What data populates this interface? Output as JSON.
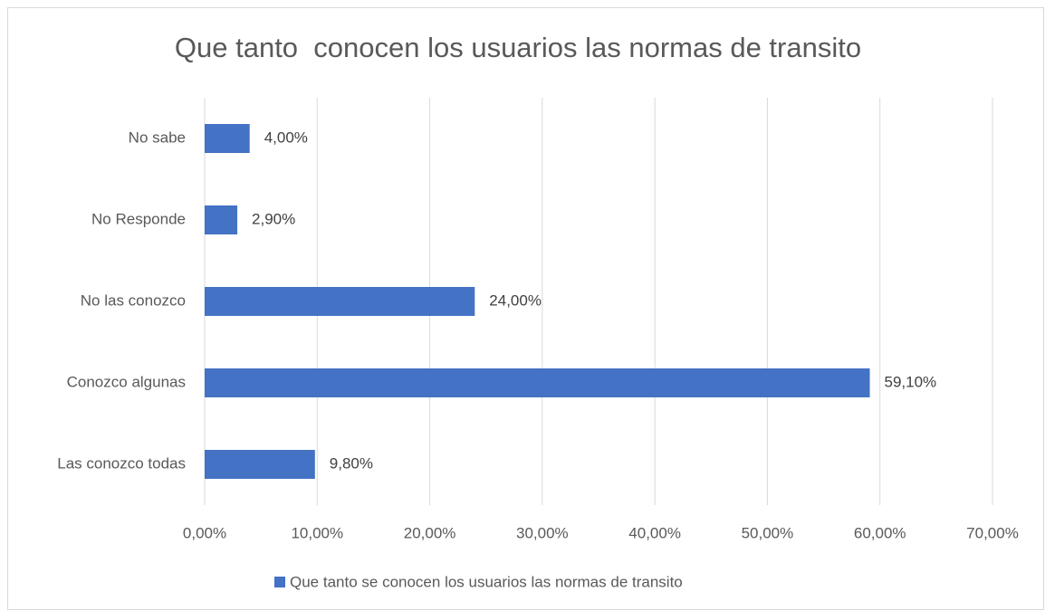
{
  "chart_data": {
    "type": "hbar",
    "title": "Que tanto  conocen los usuarios las normas de transito",
    "categories": [
      "No sabe",
      "No Responde",
      "No las conozco",
      "Conozco algunas",
      "Las conozco todas"
    ],
    "series": [
      {
        "name": "Que tanto se conocen los usuarios las normas de transito",
        "color": "#4472c4",
        "values": [
          4.0,
          2.9,
          24.0,
          59.1,
          9.8
        ],
        "value_labels": [
          "4,00%",
          "2,90%",
          "24,00%",
          "59,10%",
          "9,80%"
        ]
      }
    ],
    "xlim": [
      0,
      70
    ],
    "xticks": [
      {
        "value": 0,
        "label": "0,00%"
      },
      {
        "value": 10,
        "label": "10,00%"
      },
      {
        "value": 20,
        "label": "20,00%"
      },
      {
        "value": 30,
        "label": "30,00%"
      },
      {
        "value": 40,
        "label": "40,00%"
      },
      {
        "value": 50,
        "label": "50,00%"
      },
      {
        "value": 60,
        "label": "60,00%"
      },
      {
        "value": 70,
        "label": "70,00%"
      }
    ],
    "grid": true,
    "legend": "bottom"
  }
}
